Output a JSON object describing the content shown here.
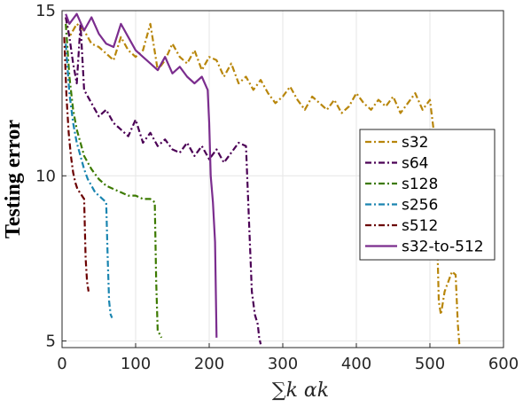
{
  "chart_data": {
    "type": "line",
    "xlabel": "∑k αk",
    "ylabel": "Testing error",
    "xlim": [
      0,
      600
    ],
    "ylim": [
      4.8,
      15
    ],
    "xticks": [
      0,
      100,
      200,
      300,
      400,
      500,
      600
    ],
    "yticks": [
      5,
      10,
      15
    ],
    "grid": true,
    "legend_position": "right",
    "series": [
      {
        "name": "s32",
        "color": "#B8860B",
        "dash": "dashdot",
        "x": [
          5,
          10,
          20,
          30,
          40,
          50,
          60,
          70,
          80,
          90,
          100,
          110,
          120,
          130,
          140,
          150,
          160,
          170,
          180,
          190,
          200,
          210,
          220,
          230,
          240,
          250,
          260,
          270,
          280,
          290,
          300,
          310,
          320,
          330,
          340,
          350,
          360,
          370,
          380,
          390,
          400,
          410,
          420,
          430,
          440,
          450,
          460,
          470,
          480,
          490,
          500,
          505,
          510,
          512,
          515,
          520,
          525,
          530,
          535,
          538,
          540
        ],
        "y": [
          14.8,
          14.2,
          14.6,
          14.4,
          14.0,
          13.9,
          13.7,
          13.5,
          14.2,
          13.8,
          13.6,
          13.8,
          14.6,
          13.2,
          13.5,
          14.0,
          13.6,
          13.4,
          13.8,
          13.2,
          13.6,
          13.5,
          13.0,
          13.4,
          12.8,
          13.0,
          12.6,
          12.9,
          12.5,
          12.2,
          12.4,
          12.7,
          12.3,
          12.0,
          12.4,
          12.2,
          12.0,
          12.3,
          11.9,
          12.1,
          12.5,
          12.2,
          12.0,
          12.3,
          12.1,
          12.4,
          11.9,
          12.2,
          12.5,
          12.0,
          12.3,
          11.4,
          8.0,
          6.2,
          5.8,
          6.5,
          6.8,
          7.1,
          7.0,
          5.5,
          4.9
        ]
      },
      {
        "name": "s64",
        "color": "#4B0055",
        "dash": "dashdot",
        "x": [
          5,
          10,
          15,
          20,
          25,
          30,
          40,
          50,
          60,
          70,
          80,
          90,
          100,
          110,
          120,
          130,
          140,
          150,
          160,
          170,
          180,
          190,
          200,
          210,
          220,
          230,
          240,
          250,
          258,
          262,
          266,
          268,
          270
        ],
        "y": [
          14.8,
          14.2,
          13.4,
          12.8,
          14.6,
          12.6,
          12.2,
          11.8,
          12.0,
          11.6,
          11.4,
          11.2,
          11.7,
          11.0,
          11.3,
          10.9,
          11.1,
          10.8,
          10.7,
          11.0,
          10.6,
          10.9,
          10.5,
          10.8,
          10.4,
          10.7,
          11.0,
          10.9,
          6.5,
          5.8,
          5.5,
          5.1,
          4.9
        ]
      },
      {
        "name": "s128",
        "color": "#3C7A00",
        "dash": "dashdot",
        "x": [
          5,
          10,
          15,
          20,
          25,
          30,
          40,
          50,
          60,
          70,
          80,
          90,
          100,
          110,
          120,
          126,
          128,
          130,
          133,
          135
        ],
        "y": [
          14.6,
          13.0,
          12.0,
          11.4,
          11.0,
          10.6,
          10.2,
          9.9,
          9.7,
          9.6,
          9.5,
          9.4,
          9.4,
          9.3,
          9.3,
          9.2,
          6.8,
          5.3,
          5.2,
          5.1
        ]
      },
      {
        "name": "s256",
        "color": "#1A85B0",
        "dash": "dashdot",
        "x": [
          5,
          10,
          15,
          20,
          25,
          30,
          35,
          40,
          45,
          50,
          55,
          60,
          62,
          64,
          66,
          68
        ],
        "y": [
          14.0,
          12.5,
          11.6,
          11.0,
          10.6,
          10.2,
          9.9,
          9.7,
          9.5,
          9.4,
          9.3,
          9.2,
          7.5,
          6.2,
          5.8,
          5.7
        ]
      },
      {
        "name": "s512",
        "color": "#6B0000",
        "dash": "dashdot",
        "x": [
          3,
          6,
          9,
          12,
          15,
          18,
          21,
          24,
          27,
          30,
          32,
          34,
          36
        ],
        "y": [
          14.2,
          12.4,
          11.3,
          10.6,
          10.1,
          9.8,
          9.6,
          9.5,
          9.4,
          9.3,
          7.5,
          6.8,
          6.5
        ]
      },
      {
        "name": "s32-to-512",
        "color": "#7B2D8E",
        "dash": "solid",
        "x": [
          5,
          10,
          20,
          30,
          40,
          50,
          60,
          70,
          80,
          90,
          100,
          110,
          120,
          130,
          140,
          150,
          160,
          170,
          180,
          190,
          198,
          200,
          202,
          205,
          208,
          210
        ],
        "y": [
          14.9,
          14.6,
          14.9,
          14.4,
          14.8,
          14.3,
          14.0,
          13.9,
          14.6,
          14.2,
          13.8,
          13.6,
          13.4,
          13.2,
          13.6,
          13.1,
          13.3,
          13.0,
          12.8,
          13.0,
          12.6,
          11.6,
          10.0,
          9.2,
          8.0,
          5.1
        ]
      }
    ]
  }
}
